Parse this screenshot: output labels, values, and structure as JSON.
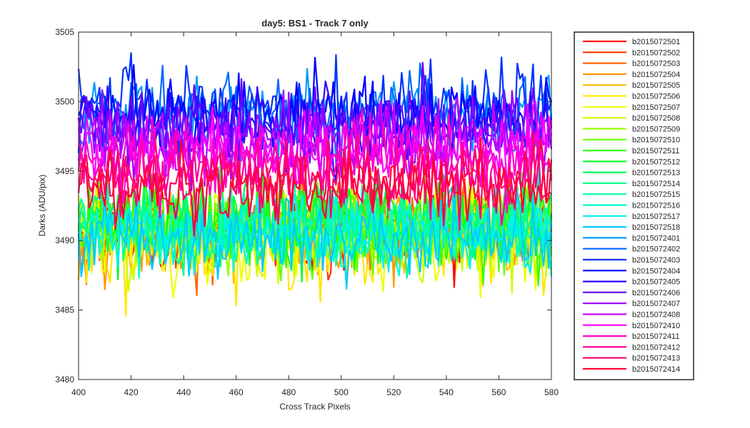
{
  "chart_data": {
    "type": "line",
    "title": "day5: BS1 - Track 7 only",
    "xlabel": "Cross Track Pixels",
    "ylabel": "Darks (ADU/pix)",
    "xlim": [
      400,
      580
    ],
    "ylim": [
      3480,
      3505
    ],
    "xticks": [
      "400",
      "420",
      "440",
      "460",
      "480",
      "500",
      "520",
      "540",
      "560",
      "580"
    ],
    "yticks": [
      "3480",
      "3485",
      "3490",
      "3495",
      "3500",
      "3505"
    ],
    "x_start": 400,
    "x_end": 580,
    "x_step": 1,
    "legend_position": "outside-right",
    "grid": false,
    "series": [
      {
        "name": "b2015072501",
        "color": "#ff0000",
        "mean": 3490.6,
        "spread": 1.4
      },
      {
        "name": "b2015072502",
        "color": "#ff3300",
        "mean": 3490.8,
        "spread": 1.4
      },
      {
        "name": "b2015072503",
        "color": "#ff6600",
        "mean": 3490.9,
        "spread": 1.4
      },
      {
        "name": "b2015072504",
        "color": "#ff9900",
        "mean": 3490.7,
        "spread": 1.5
      },
      {
        "name": "b2015072505",
        "color": "#ffbb00",
        "mean": 3490.6,
        "spread": 1.6
      },
      {
        "name": "b2015072506",
        "color": "#ffe600",
        "mean": 3489.9,
        "spread": 1.8
      },
      {
        "name": "b2015072507",
        "color": "#eeff00",
        "mean": 3490.2,
        "spread": 1.7
      },
      {
        "name": "b2015072508",
        "color": "#ccff00",
        "mean": 3490.5,
        "spread": 1.6
      },
      {
        "name": "b2015072509",
        "color": "#99ff00",
        "mean": 3490.9,
        "spread": 1.5
      },
      {
        "name": "b2015072510",
        "color": "#66ff00",
        "mean": 3491.1,
        "spread": 1.5
      },
      {
        "name": "b2015072511",
        "color": "#33ff00",
        "mean": 3491.3,
        "spread": 1.4
      },
      {
        "name": "b2015072512",
        "color": "#00ff22",
        "mean": 3491.5,
        "spread": 1.4
      },
      {
        "name": "b2015072513",
        "color": "#00ff55",
        "mean": 3491.2,
        "spread": 1.4
      },
      {
        "name": "b2015072514",
        "color": "#00ff88",
        "mean": 3491.0,
        "spread": 1.4
      },
      {
        "name": "b2015072515",
        "color": "#00ffaa",
        "mean": 3490.8,
        "spread": 1.4
      },
      {
        "name": "b2015072516",
        "color": "#00ffcc",
        "mean": 3490.6,
        "spread": 1.4
      },
      {
        "name": "b2015072517",
        "color": "#00f0ee",
        "mean": 3490.4,
        "spread": 1.4
      },
      {
        "name": "b2015072518",
        "color": "#00ccff",
        "mean": 3490.2,
        "spread": 1.4
      },
      {
        "name": "b2015072401",
        "color": "#0099ff",
        "mean": 3498.9,
        "spread": 1.5
      },
      {
        "name": "b2015072402",
        "color": "#0066ff",
        "mean": 3499.2,
        "spread": 1.5
      },
      {
        "name": "b2015072403",
        "color": "#0033ff",
        "mean": 3499.6,
        "spread": 1.5
      },
      {
        "name": "b2015072404",
        "color": "#0000ff",
        "mean": 3499.0,
        "spread": 1.4
      },
      {
        "name": "b2015072405",
        "color": "#3300ff",
        "mean": 3498.4,
        "spread": 1.4
      },
      {
        "name": "b2015072406",
        "color": "#6600ff",
        "mean": 3498.0,
        "spread": 1.4
      },
      {
        "name": "b2015072407",
        "color": "#9900ff",
        "mean": 3497.4,
        "spread": 1.4
      },
      {
        "name": "b2015072408",
        "color": "#cc00ff",
        "mean": 3497.0,
        "spread": 1.4
      },
      {
        "name": "b2015072410",
        "color": "#ff00ff",
        "mean": 3496.6,
        "spread": 1.4
      },
      {
        "name": "b2015072411",
        "color": "#ff00cc",
        "mean": 3495.8,
        "spread": 1.4
      },
      {
        "name": "b2015072412",
        "color": "#ff0099",
        "mean": 3494.9,
        "spread": 1.3
      },
      {
        "name": "b2015072413",
        "color": "#ff0066",
        "mean": 3494.3,
        "spread": 1.3
      },
      {
        "name": "b2015072414",
        "color": "#ff0033",
        "mean": 3493.8,
        "spread": 1.3
      }
    ]
  }
}
